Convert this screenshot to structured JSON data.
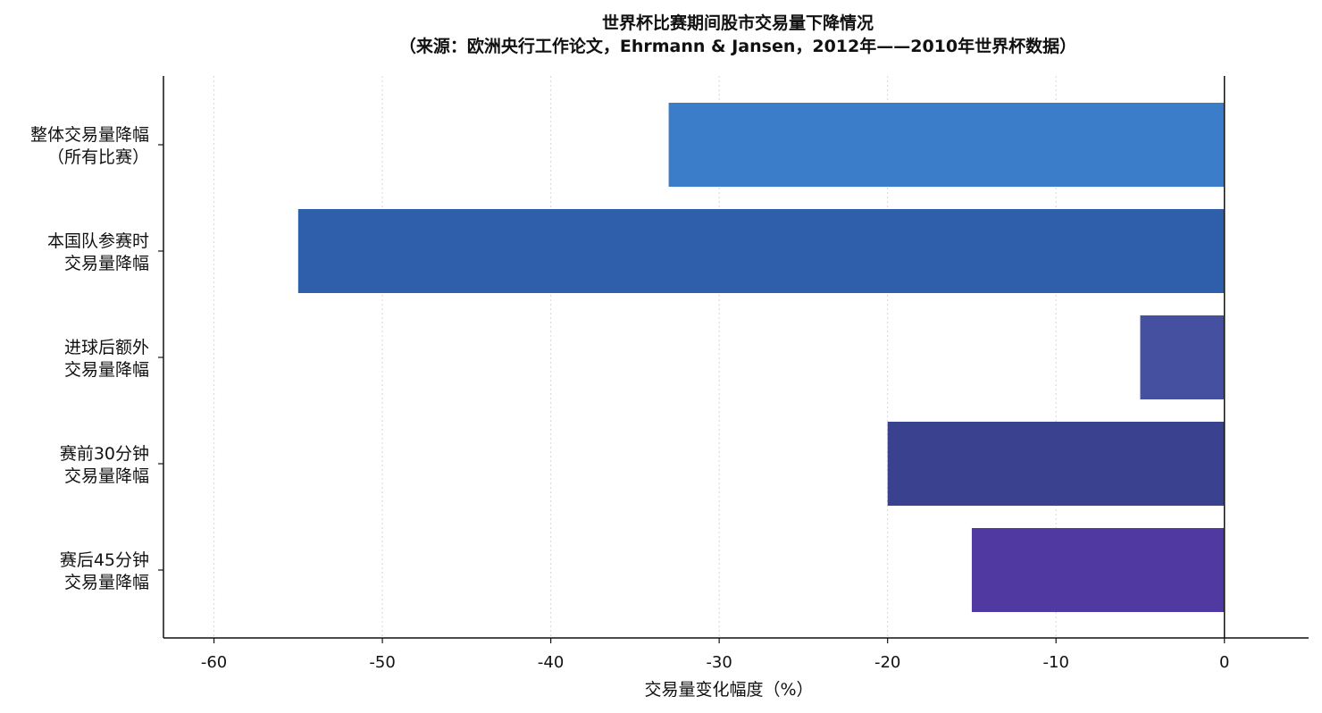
{
  "chart_data": {
    "type": "bar",
    "orientation": "horizontal",
    "title": "世界杯比赛期间股市交易量下降情况",
    "subtitle": "（来源：欧洲央行工作论文，Ehrmann & Jansen，2012年——2010年世界杯数据）",
    "xlabel": "交易量变化幅度（%）",
    "ylabel": "",
    "xlim": [
      -63,
      5
    ],
    "xticks": [
      -60,
      -50,
      -40,
      -30,
      -20,
      -10,
      0
    ],
    "grid": "vertical-dotted",
    "categories": [
      [
        "整体交易量降幅",
        "（所有比赛）"
      ],
      [
        "本国队参赛时",
        "交易量降幅"
      ],
      [
        "进球后额外",
        "交易量降幅"
      ],
      [
        "赛前30分钟",
        "交易量降幅"
      ],
      [
        "赛后45分钟",
        "交易量降幅"
      ]
    ],
    "values": [
      -33,
      -55,
      -5,
      -20,
      -15
    ],
    "colors": [
      "#3b7dc9",
      "#2f5fab",
      "#4650a0",
      "#3a4290",
      "#5039a0"
    ]
  }
}
